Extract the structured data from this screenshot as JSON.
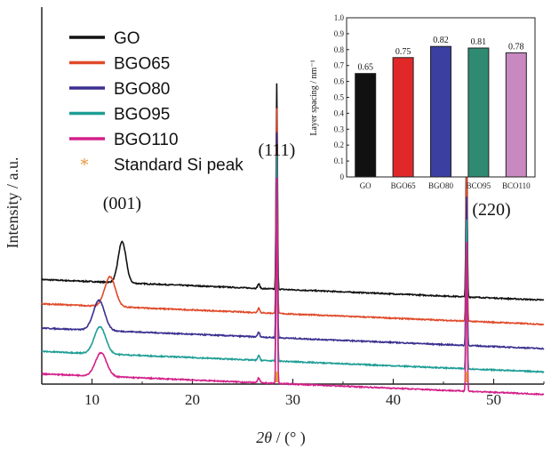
{
  "chart_data": [
    {
      "type": "line",
      "xlabel_symbol": "2θ",
      "xlabel_unit": " / (° )",
      "ylabel": "Intensity / a.u.",
      "xlim": [
        5,
        55
      ],
      "x_ticks": [
        10,
        20,
        30,
        40,
        50
      ],
      "legend_position": "top-left",
      "series": [
        {
          "name": "GO",
          "color": "#111111",
          "offset": 5.6,
          "peak001": 13.0,
          "peak001_height": 2.2,
          "peak001_width": 0.55
        },
        {
          "name": "BGO65",
          "color": "#e04a2a",
          "offset": 4.3,
          "peak001": 11.8,
          "peak001_height": 1.6,
          "peak001_width": 0.75
        },
        {
          "name": "BGO80",
          "color": "#3a2f8f",
          "offset": 3.0,
          "peak001": 10.7,
          "peak001_height": 1.6,
          "peak001_width": 0.8
        },
        {
          "name": "BGO95",
          "color": "#1f9e96",
          "offset": 1.75,
          "peak001": 10.8,
          "peak001_height": 1.45,
          "peak001_width": 0.8
        },
        {
          "name": "BGO110",
          "color": "#d4208a",
          "offset": 0.55,
          "peak001": 10.9,
          "peak001_height": 1.25,
          "peak001_width": 0.8
        }
      ],
      "standard_peak": {
        "label": "Standard Si peak",
        "color": "#e8963a",
        "positions": [
          28.4,
          47.3
        ]
      },
      "annotations": [
        {
          "text": "(001)",
          "x": 13.0
        },
        {
          "text": "(111)",
          "x": 28.4
        },
        {
          "text": "(220)",
          "x": 47.3
        }
      ]
    },
    {
      "type": "bar",
      "title": "",
      "ylabel": "Layer spacing / nm⁻¹",
      "ylim": [
        0,
        1.0
      ],
      "y_ticks": [
        "0",
        "0.1",
        "0.2",
        "0.3",
        "0.4",
        "0.5",
        "0.6",
        "0.7",
        "0.8",
        "0.9",
        "1.0"
      ],
      "categories": [
        "GO",
        "BGO65",
        "BGO80",
        "BCO95",
        "BCO110"
      ],
      "values": [
        0.65,
        0.75,
        0.82,
        0.81,
        0.78
      ],
      "value_labels": [
        "0.65",
        "0.75",
        "0.82",
        "0.81",
        "0.78"
      ],
      "colors": [
        "#111111",
        "#e02828",
        "#3a3fa0",
        "#2f8a72",
        "#c888c0"
      ]
    }
  ]
}
